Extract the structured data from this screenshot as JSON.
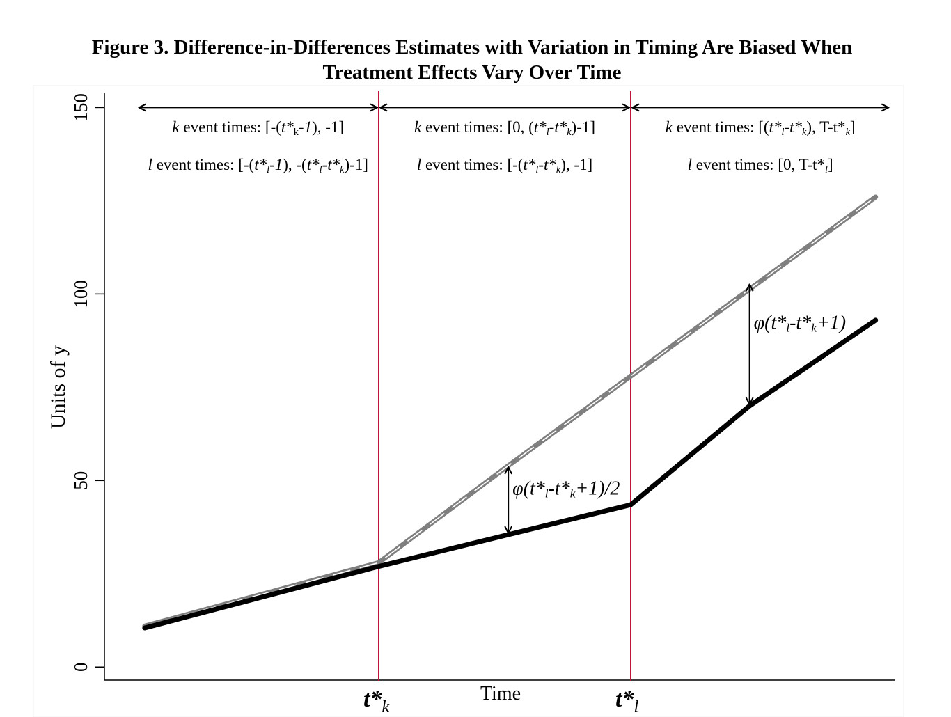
{
  "figure": {
    "title_line1": "Figure 3. Difference-in-Differences Estimates with Variation in Timing Are Biased When",
    "title_line2": "Treatment Effects Vary Over Time"
  },
  "chart_data": {
    "type": "line",
    "title": "Figure 3. Difference-in-Differences Estimates with Variation in Timing Are Biased When Treatment Effects Vary Over Time",
    "xlabel": "Time",
    "ylabel": "Units of y",
    "ylim": [
      -3.5,
      154
    ],
    "yticks": [
      0,
      50,
      100,
      150
    ],
    "xlim": [
      0,
      20
    ],
    "x_tick_labels": [
      {
        "x": 7,
        "main": "t*",
        "sub": "k"
      },
      {
        "x": 14,
        "main": "t*",
        "sub": "l"
      }
    ],
    "grid": false,
    "series": [
      {
        "style": "dashed",
        "color": "#7f7f7f",
        "points": [
          [
            0.5,
            11
          ],
          [
            7,
            28
          ],
          [
            10.6,
            54
          ],
          [
            14,
            78
          ],
          [
            20.8,
            126
          ]
        ]
      },
      {
        "style": "solid",
        "color": "#000000",
        "points": [
          [
            0.5,
            10.5
          ],
          [
            7,
            27
          ],
          [
            10.6,
            35.5
          ],
          [
            14,
            43.5
          ],
          [
            17.3,
            70
          ],
          [
            20.8,
            93
          ]
        ]
      }
    ],
    "vertical_lines": [
      {
        "x": 7,
        "color": "#c0143c"
      },
      {
        "x": 14,
        "color": "#c0143c"
      }
    ],
    "period_arrows": [
      {
        "x1": 0.3,
        "x2": 7,
        "y": 150
      },
      {
        "x1": 7,
        "x2": 14,
        "y": 150
      },
      {
        "x1": 14,
        "x2": 21.2,
        "y": 150
      }
    ],
    "period_labels": [
      {
        "k_prefix": "k",
        "k_text": " event times: [-(t*k-1), -1]",
        "l_prefix": "l",
        "l_text": " event times: [-(t*l-1), -(t*l-t*k)-1]"
      },
      {
        "k_prefix": "k",
        "k_text": " event times: [0, (t*l-t*k)-1]",
        "l_prefix": "l",
        "l_text": " event times: [-(t*l-t*k), -1]"
      },
      {
        "k_prefix": "k",
        "k_text": " event times: [(t*l-t*k), T-t*k]",
        "l_prefix": "l",
        "l_text": " event times: [0, T-t*l]"
      }
    ],
    "gap_annotations": [
      {
        "x": 10.6,
        "y_low": 35.5,
        "y_high": 54,
        "label": "φ(t*l-t*k+1)/2"
      },
      {
        "x": 17.3,
        "y_low": 70,
        "y_high": 103,
        "label": "φ(t*l-t*k+1)"
      }
    ]
  }
}
